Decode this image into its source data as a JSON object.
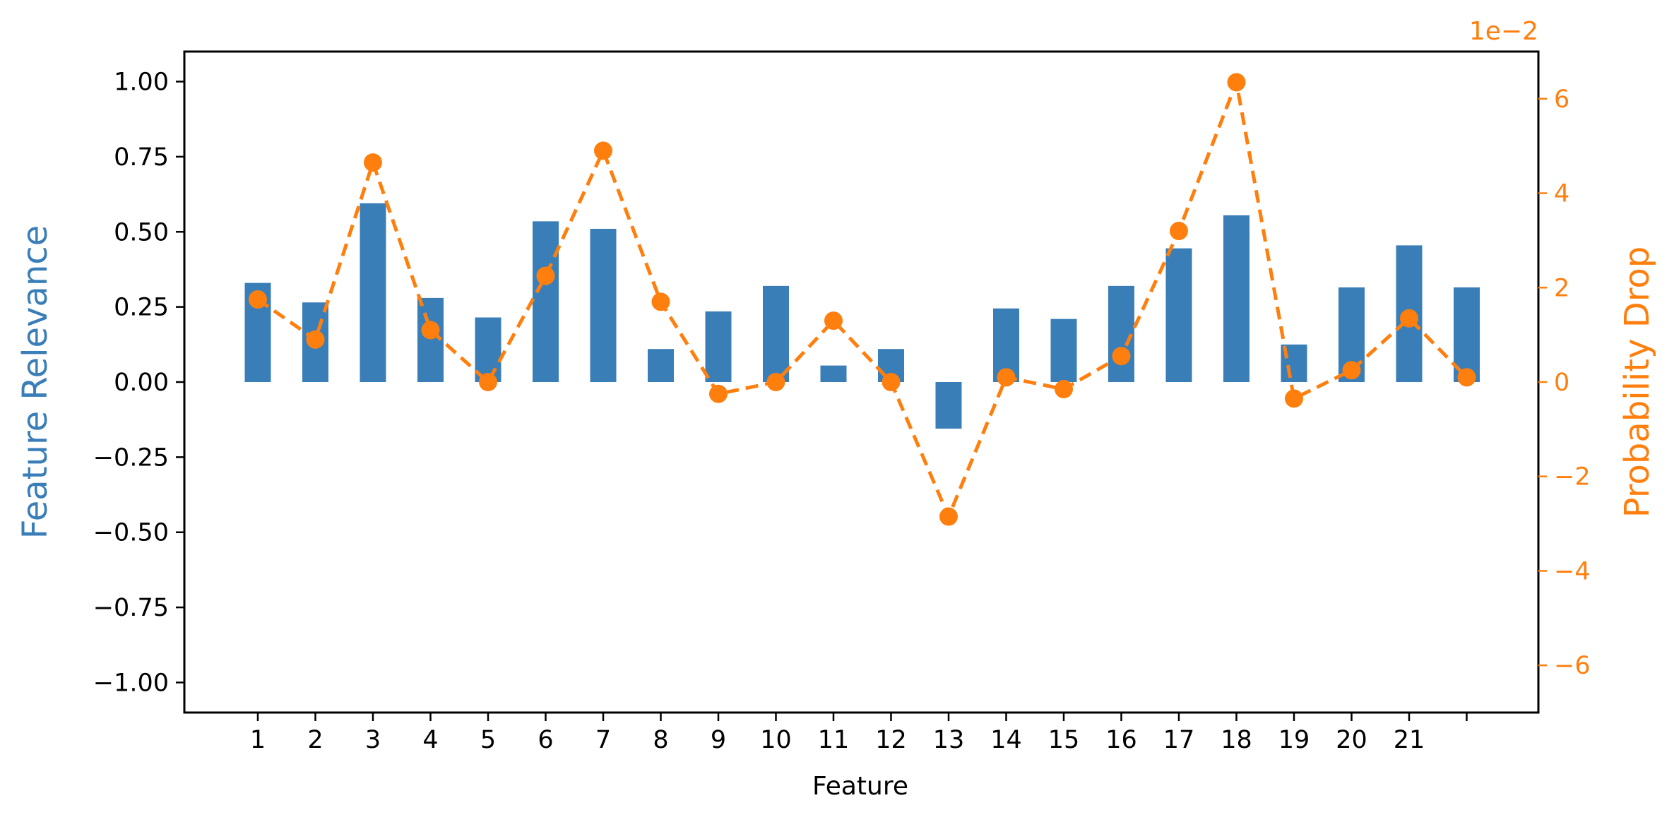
{
  "chart_data": {
    "type": "bar+line",
    "xlabel": "Feature",
    "ylabel_left": "Feature Relevance",
    "ylabel_right": "Probability Drop",
    "right_axis_multiplier": "1e−2",
    "ylim_left": [
      -1.1,
      1.1
    ],
    "ylim_right": [
      -7.0,
      7.0
    ],
    "left_ticks": [
      -1.0,
      -0.75,
      -0.5,
      -0.25,
      0.0,
      0.25,
      0.5,
      0.75,
      1.0
    ],
    "left_tick_labels": [
      "−1.00",
      "−0.75",
      "−0.50",
      "−0.25",
      "0.00",
      "0.25",
      "0.50",
      "0.75",
      "1.00"
    ],
    "right_ticks": [
      -6,
      -4,
      -2,
      0,
      2,
      4,
      6
    ],
    "right_tick_labels": [
      "−6",
      "−4",
      "−2",
      "0",
      "2",
      "4",
      "6"
    ],
    "x_tick_labels": [
      "1",
      "2",
      "3",
      "4",
      "5",
      "6",
      "7",
      "8",
      "9",
      "10",
      "11",
      "12",
      "13",
      "14",
      "15",
      "16",
      "17",
      "18",
      "19",
      "20",
      "21",
      ""
    ],
    "grid": false,
    "colors": {
      "bars": "#3a7eb8",
      "line": "#ff7f0e",
      "axis": "#000000"
    },
    "series": [
      {
        "kind": "bar",
        "axis": "left",
        "values": [
          0.33,
          0.265,
          0.595,
          0.28,
          0.215,
          0.535,
          0.51,
          0.11,
          0.235,
          0.32,
          0.055,
          0.11,
          -0.155,
          0.245,
          0.21,
          0.32,
          0.445,
          0.555,
          0.125,
          0.315,
          0.455,
          0.315
        ]
      },
      {
        "kind": "line",
        "axis": "right",
        "style": "dashed with circle markers",
        "values": [
          1.75,
          0.9,
          4.65,
          1.1,
          0.0,
          2.25,
          4.9,
          1.7,
          -0.25,
          0.0,
          1.3,
          0.0,
          -2.85,
          0.1,
          -0.15,
          0.55,
          3.2,
          6.35,
          -0.35,
          0.25,
          1.35,
          0.1
        ]
      }
    ]
  }
}
